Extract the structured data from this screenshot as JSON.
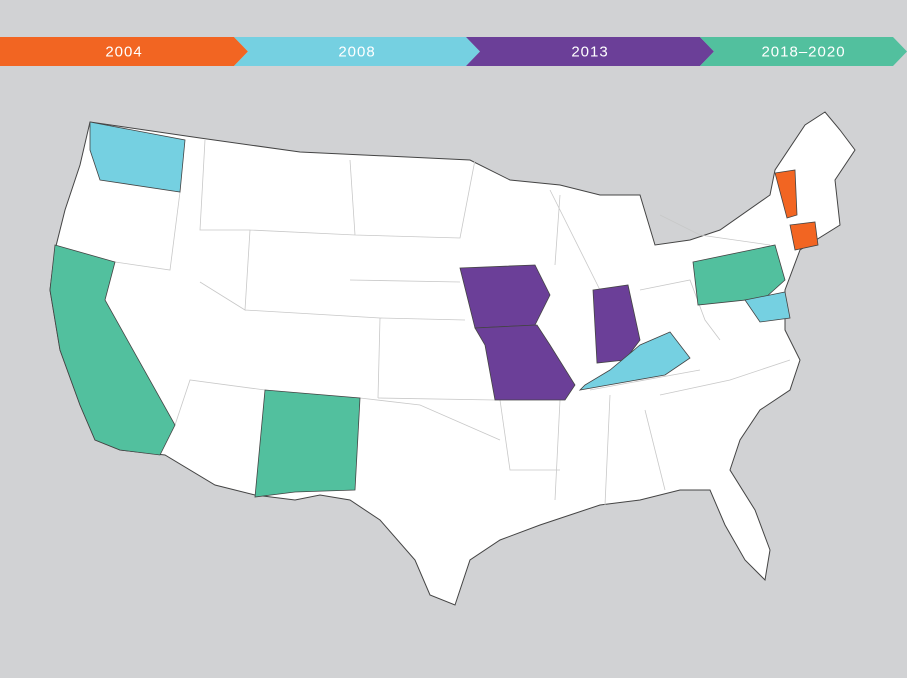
{
  "timeline": {
    "items": [
      {
        "label": "2004",
        "color": "#f26522"
      },
      {
        "label": "2008",
        "color": "#75d0e1"
      },
      {
        "label": "2013",
        "color": "#6b3f98"
      },
      {
        "label": "2018–2020",
        "color": "#52c09e"
      }
    ]
  }
}
